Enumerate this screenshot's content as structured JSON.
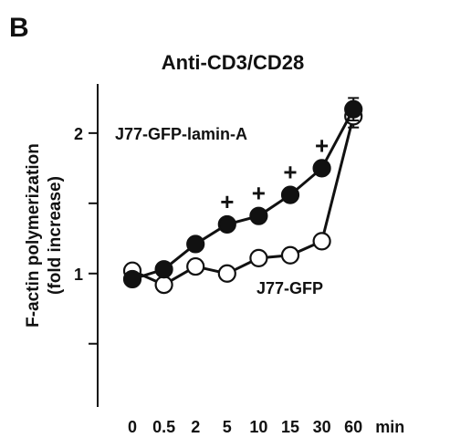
{
  "panel_label": "B",
  "chart_data": {
    "type": "line",
    "title": "Anti-CD3/CD28",
    "ylabel_line1": "F-actin polymerization",
    "ylabel_line2": "(fold increase)",
    "xlabel": "",
    "x_unit": "min",
    "categories": [
      "0",
      "0.5",
      "2",
      "5",
      "10",
      "15",
      "30",
      "60"
    ],
    "y_ticks": [
      1,
      2
    ],
    "ylim": [
      0.05,
      2.35
    ],
    "grid": false,
    "series": [
      {
        "name": "J77-GFP-lamin-A",
        "marker": "filled-circle",
        "color": "#111111",
        "values": [
          0.96,
          1.03,
          1.21,
          1.35,
          1.41,
          1.56,
          1.75,
          2.17
        ],
        "errors": [
          0.02,
          0.01,
          0.01,
          0.02,
          0.02,
          0.02,
          0.02,
          0.08
        ]
      },
      {
        "name": "J77-GFP",
        "marker": "open-circle",
        "color": "#111111",
        "values": [
          1.02,
          0.92,
          1.05,
          1.0,
          1.11,
          1.13,
          1.23,
          2.12
        ],
        "errors": [
          0.02,
          0.01,
          0.01,
          0.01,
          0.01,
          0.01,
          0.02,
          0.08
        ]
      }
    ],
    "significance": {
      "symbol": "+",
      "categories": [
        "5",
        "10",
        "15",
        "30"
      ]
    }
  }
}
